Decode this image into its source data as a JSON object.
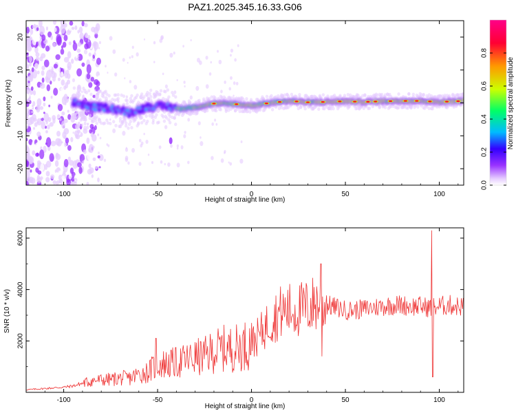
{
  "title": "PAZ1.2025.345.16.33.G06",
  "chart_data": [
    {
      "type": "heatmap",
      "title": "PAZ1.2025.345.16.33.G06",
      "xlabel": "Height of straight line (km)",
      "ylabel": "Frequency (Hz)",
      "xlim": [
        -120,
        113
      ],
      "ylim": [
        -25,
        25
      ],
      "xticks": [
        -100,
        -50,
        0,
        50,
        100
      ],
      "xtick_labels": [
        "-100",
        "-50",
        "0",
        "50",
        "100"
      ],
      "yticks": [
        -20,
        -10,
        0,
        10,
        20
      ],
      "ytick_labels": [
        "-20",
        "-10",
        "0",
        "10",
        "20"
      ],
      "colorbar": {
        "label": "Normalized spectral amplitude",
        "range": [
          0,
          1
        ],
        "ticks": [
          0.0,
          0.2,
          0.4,
          0.6,
          0.8
        ],
        "tick_labels": [
          "0.0",
          "0.2",
          "0.4",
          "0.6",
          "0.8"
        ],
        "colors": [
          "#ffffff",
          "#e6ccff",
          "#9933ff",
          "#3300ff",
          "#00bbff",
          "#00ff66",
          "#ccff00",
          "#ff9900",
          "#ff0033",
          "#ff0088"
        ]
      },
      "ridge": [
        {
          "x": -93,
          "y": 0.0
        },
        {
          "x": -85,
          "y": -1.3
        },
        {
          "x": -75,
          "y": -1.5
        },
        {
          "x": -65,
          "y": -3.0
        },
        {
          "x": -55,
          "y": -1.2
        },
        {
          "x": -45,
          "y": -1.0
        },
        {
          "x": -38,
          "y": -1.8
        },
        {
          "x": -30,
          "y": -1.3
        },
        {
          "x": -20,
          "y": -0.2
        },
        {
          "x": -10,
          "y": -0.3
        },
        {
          "x": 0,
          "y": -0.8
        },
        {
          "x": 10,
          "y": 0.0
        },
        {
          "x": 20,
          "y": 0.6
        },
        {
          "x": 30,
          "y": 0.2
        },
        {
          "x": 40,
          "y": 0.3
        },
        {
          "x": 50,
          "y": 0.5
        },
        {
          "x": 60,
          "y": 0.3
        },
        {
          "x": 70,
          "y": 0.5
        },
        {
          "x": 80,
          "y": 0.6
        },
        {
          "x": 90,
          "y": 0.6
        },
        {
          "x": 100,
          "y": 0.3
        },
        {
          "x": 113,
          "y": 0.6
        }
      ]
    },
    {
      "type": "line",
      "xlabel": "Height of straight line (km)",
      "ylabel": "SNR (10 * v/v)",
      "xlim": [
        -120,
        113
      ],
      "ylim": [
        0,
        6400
      ],
      "xticks": [
        -100,
        -50,
        0,
        50,
        100
      ],
      "xtick_labels": [
        "-100",
        "-50",
        "0",
        "50",
        "100"
      ],
      "yticks": [
        2000,
        4000,
        6000
      ],
      "ytick_labels": [
        "2000",
        "4000",
        "6000"
      ],
      "color": "#ee3333",
      "series": [
        {
          "name": "SNR",
          "x": [
            -120,
            -110,
            -100,
            -95,
            -90,
            -85,
            -80,
            -75,
            -70,
            -65,
            -60,
            -55,
            -50,
            -45,
            -40,
            -35,
            -30,
            -25,
            -20,
            -15,
            -10,
            -5,
            0,
            5,
            10,
            15,
            20,
            25,
            30,
            35,
            40,
            45,
            50,
            55,
            60,
            65,
            70,
            75,
            80,
            85,
            90,
            95,
            100,
            105,
            110,
            113
          ],
          "y": [
            100,
            150,
            200,
            250,
            350,
            450,
            480,
            500,
            550,
            550,
            700,
            800,
            1100,
            1100,
            1150,
            1250,
            1350,
            1400,
            1600,
            1700,
            1700,
            1800,
            1900,
            2300,
            2800,
            3100,
            3200,
            3200,
            3300,
            3500,
            3400,
            3300,
            3200,
            3200,
            3250,
            3300,
            3350,
            3400,
            3400,
            3350,
            3350,
            3300,
            3350,
            3400,
            3350,
            3350
          ]
        }
      ],
      "peaks": [
        {
          "x": -51,
          "y": 2100
        },
        {
          "x": 0,
          "y": 2700
        },
        {
          "x": 37,
          "y": 5000
        },
        {
          "x": 37.5,
          "y": 1400
        },
        {
          "x": 96,
          "y": 6300
        },
        {
          "x": 96.5,
          "y": 600
        }
      ]
    }
  ]
}
